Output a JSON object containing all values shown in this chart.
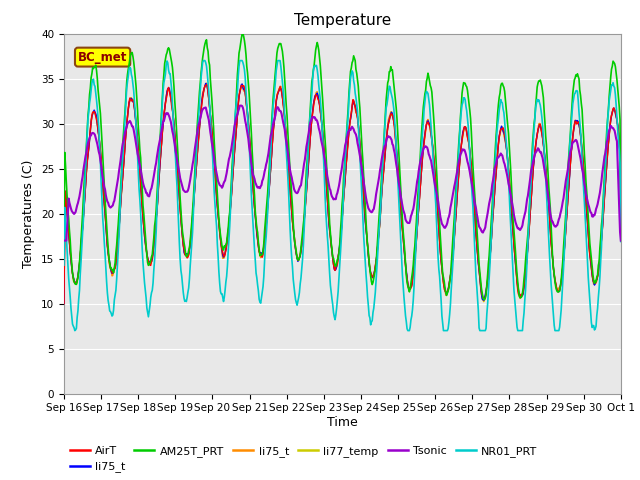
{
  "title": "Temperature",
  "ylabel": "Temperatures (C)",
  "xlabel": "Time",
  "ylim": [
    0,
    40
  ],
  "yticks": [
    0,
    5,
    10,
    15,
    20,
    25,
    30,
    35,
    40
  ],
  "xtick_labels": [
    "Sep 16",
    "Sep 17",
    "Sep 18",
    "Sep 19",
    "Sep 20",
    "Sep 21",
    "Sep 22",
    "Sep 23",
    "Sep 24",
    "Sep 25",
    "Sep 26",
    "Sep 27",
    "Sep 28",
    "Sep 29",
    "Sep 30",
    "Oct 1"
  ],
  "annotation_text": "BC_met",
  "annotation_color": "#8B0000",
  "annotation_bg": "#FFFF00",
  "legend_entries": [
    {
      "label": "AirT",
      "color": "#FF0000"
    },
    {
      "label": "li75_t",
      "color": "#0000FF"
    },
    {
      "label": "AM25T_PRT",
      "color": "#00CC00"
    },
    {
      "label": "li75_t",
      "color": "#FF8C00"
    },
    {
      "label": "li77_temp",
      "color": "#CCCC00"
    },
    {
      "label": "Tsonic",
      "color": "#9900CC"
    },
    {
      "label": "NR01_PRT",
      "color": "#00CCCC"
    }
  ],
  "title_fontsize": 11,
  "label_fontsize": 9,
  "tick_fontsize": 7.5
}
